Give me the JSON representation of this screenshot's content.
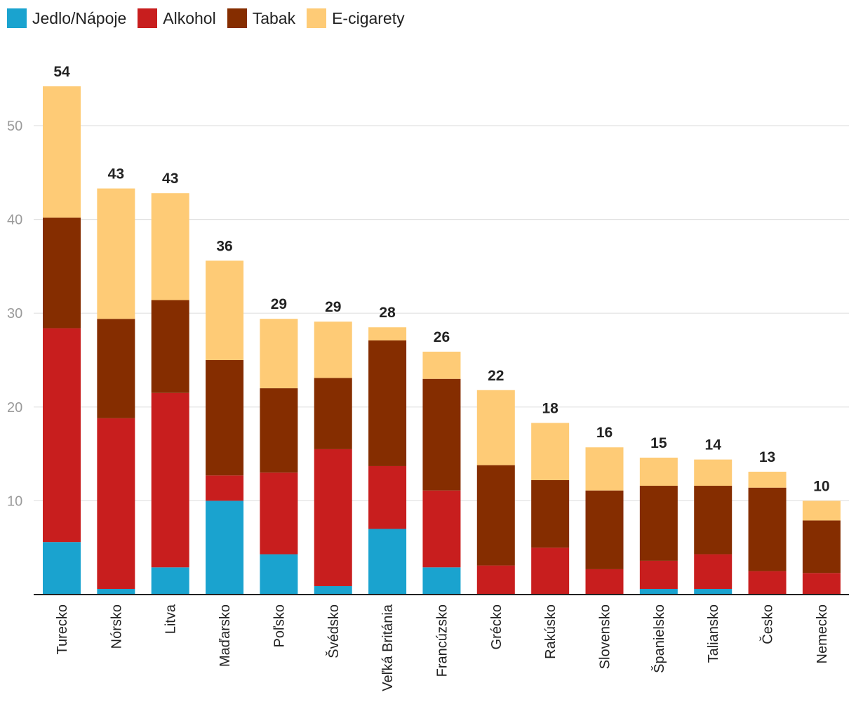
{
  "chart_data": {
    "type": "bar",
    "stacked": true,
    "categories": [
      "Turecko",
      "Nórsko",
      "Litva",
      "Maďarsko",
      "Poľsko",
      "Švédsko",
      "Veľká Británia",
      "Francúzsko",
      "Grécko",
      "Rakúsko",
      "Slovensko",
      "Španielsko",
      "Taliansko",
      "Česko",
      "Nemecko"
    ],
    "series": [
      {
        "name": "Jedlo/Nápoje",
        "color": "#1aa3cf",
        "values": [
          5.6,
          0.6,
          2.9,
          10.0,
          4.3,
          0.9,
          7.0,
          2.9,
          0,
          0,
          0,
          0.6,
          0.6,
          0,
          0
        ]
      },
      {
        "name": "Alkohol",
        "color": "#c81e1e",
        "values": [
          22.8,
          18.2,
          18.6,
          2.7,
          8.7,
          14.6,
          6.7,
          8.2,
          3.1,
          5.0,
          2.7,
          3.0,
          3.7,
          2.5,
          2.3
        ]
      },
      {
        "name": "Tabak",
        "color": "#852d00",
        "values": [
          11.8,
          10.6,
          9.9,
          12.3,
          9.0,
          7.6,
          13.4,
          11.9,
          10.7,
          7.2,
          8.4,
          8.0,
          7.3,
          8.9,
          5.6
        ]
      },
      {
        "name": "E-cigarety",
        "color": "#fecb76",
        "values": [
          14.0,
          13.9,
          11.4,
          10.6,
          7.4,
          6.0,
          1.4,
          2.9,
          8.0,
          6.1,
          4.6,
          3.0,
          2.8,
          1.7,
          2.1
        ]
      }
    ],
    "totals": [
      "54",
      "43",
      "43",
      "36",
      "29",
      "29",
      "28",
      "26",
      "22",
      "18",
      "16",
      "15",
      "14",
      "13",
      "10"
    ],
    "yticks": [
      10,
      20,
      30,
      40,
      50
    ],
    "ylim": [
      0,
      56
    ],
    "grid": true,
    "legend": "top-left",
    "title": "",
    "xlabel": "",
    "ylabel": ""
  }
}
